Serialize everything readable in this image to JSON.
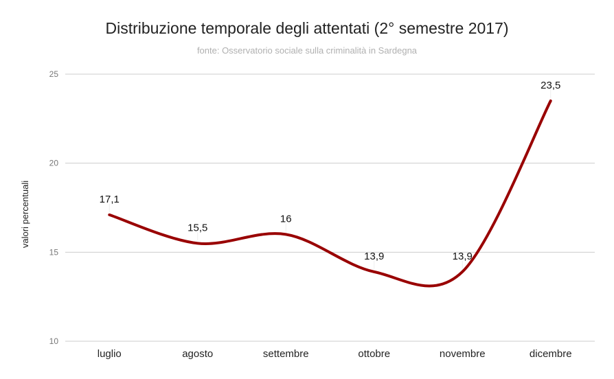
{
  "chart_data": {
    "type": "line",
    "title": "Distribuzione temporale degli attentati (2° semestre 2017)",
    "subtitle": "fonte: Osservatorio sociale sulla criminalità in Sardegna",
    "xlabel": "",
    "ylabel": "valori percentuali",
    "categories": [
      "luglio",
      "agosto",
      "settembre",
      "ottobre",
      "novembre",
      "dicembre"
    ],
    "series": [
      {
        "name": "valori percentuali",
        "values": [
          17.1,
          15.5,
          16,
          13.9,
          13.9,
          23.5
        ],
        "labels": [
          "17,1",
          "15,5",
          "16",
          "13,9",
          "13,9",
          "23,5"
        ],
        "color": "#990000"
      }
    ],
    "ylim": [
      10,
      25
    ],
    "yticks": [
      10,
      15,
      20,
      25
    ],
    "grid": true,
    "legend": "none",
    "smooth": true
  }
}
